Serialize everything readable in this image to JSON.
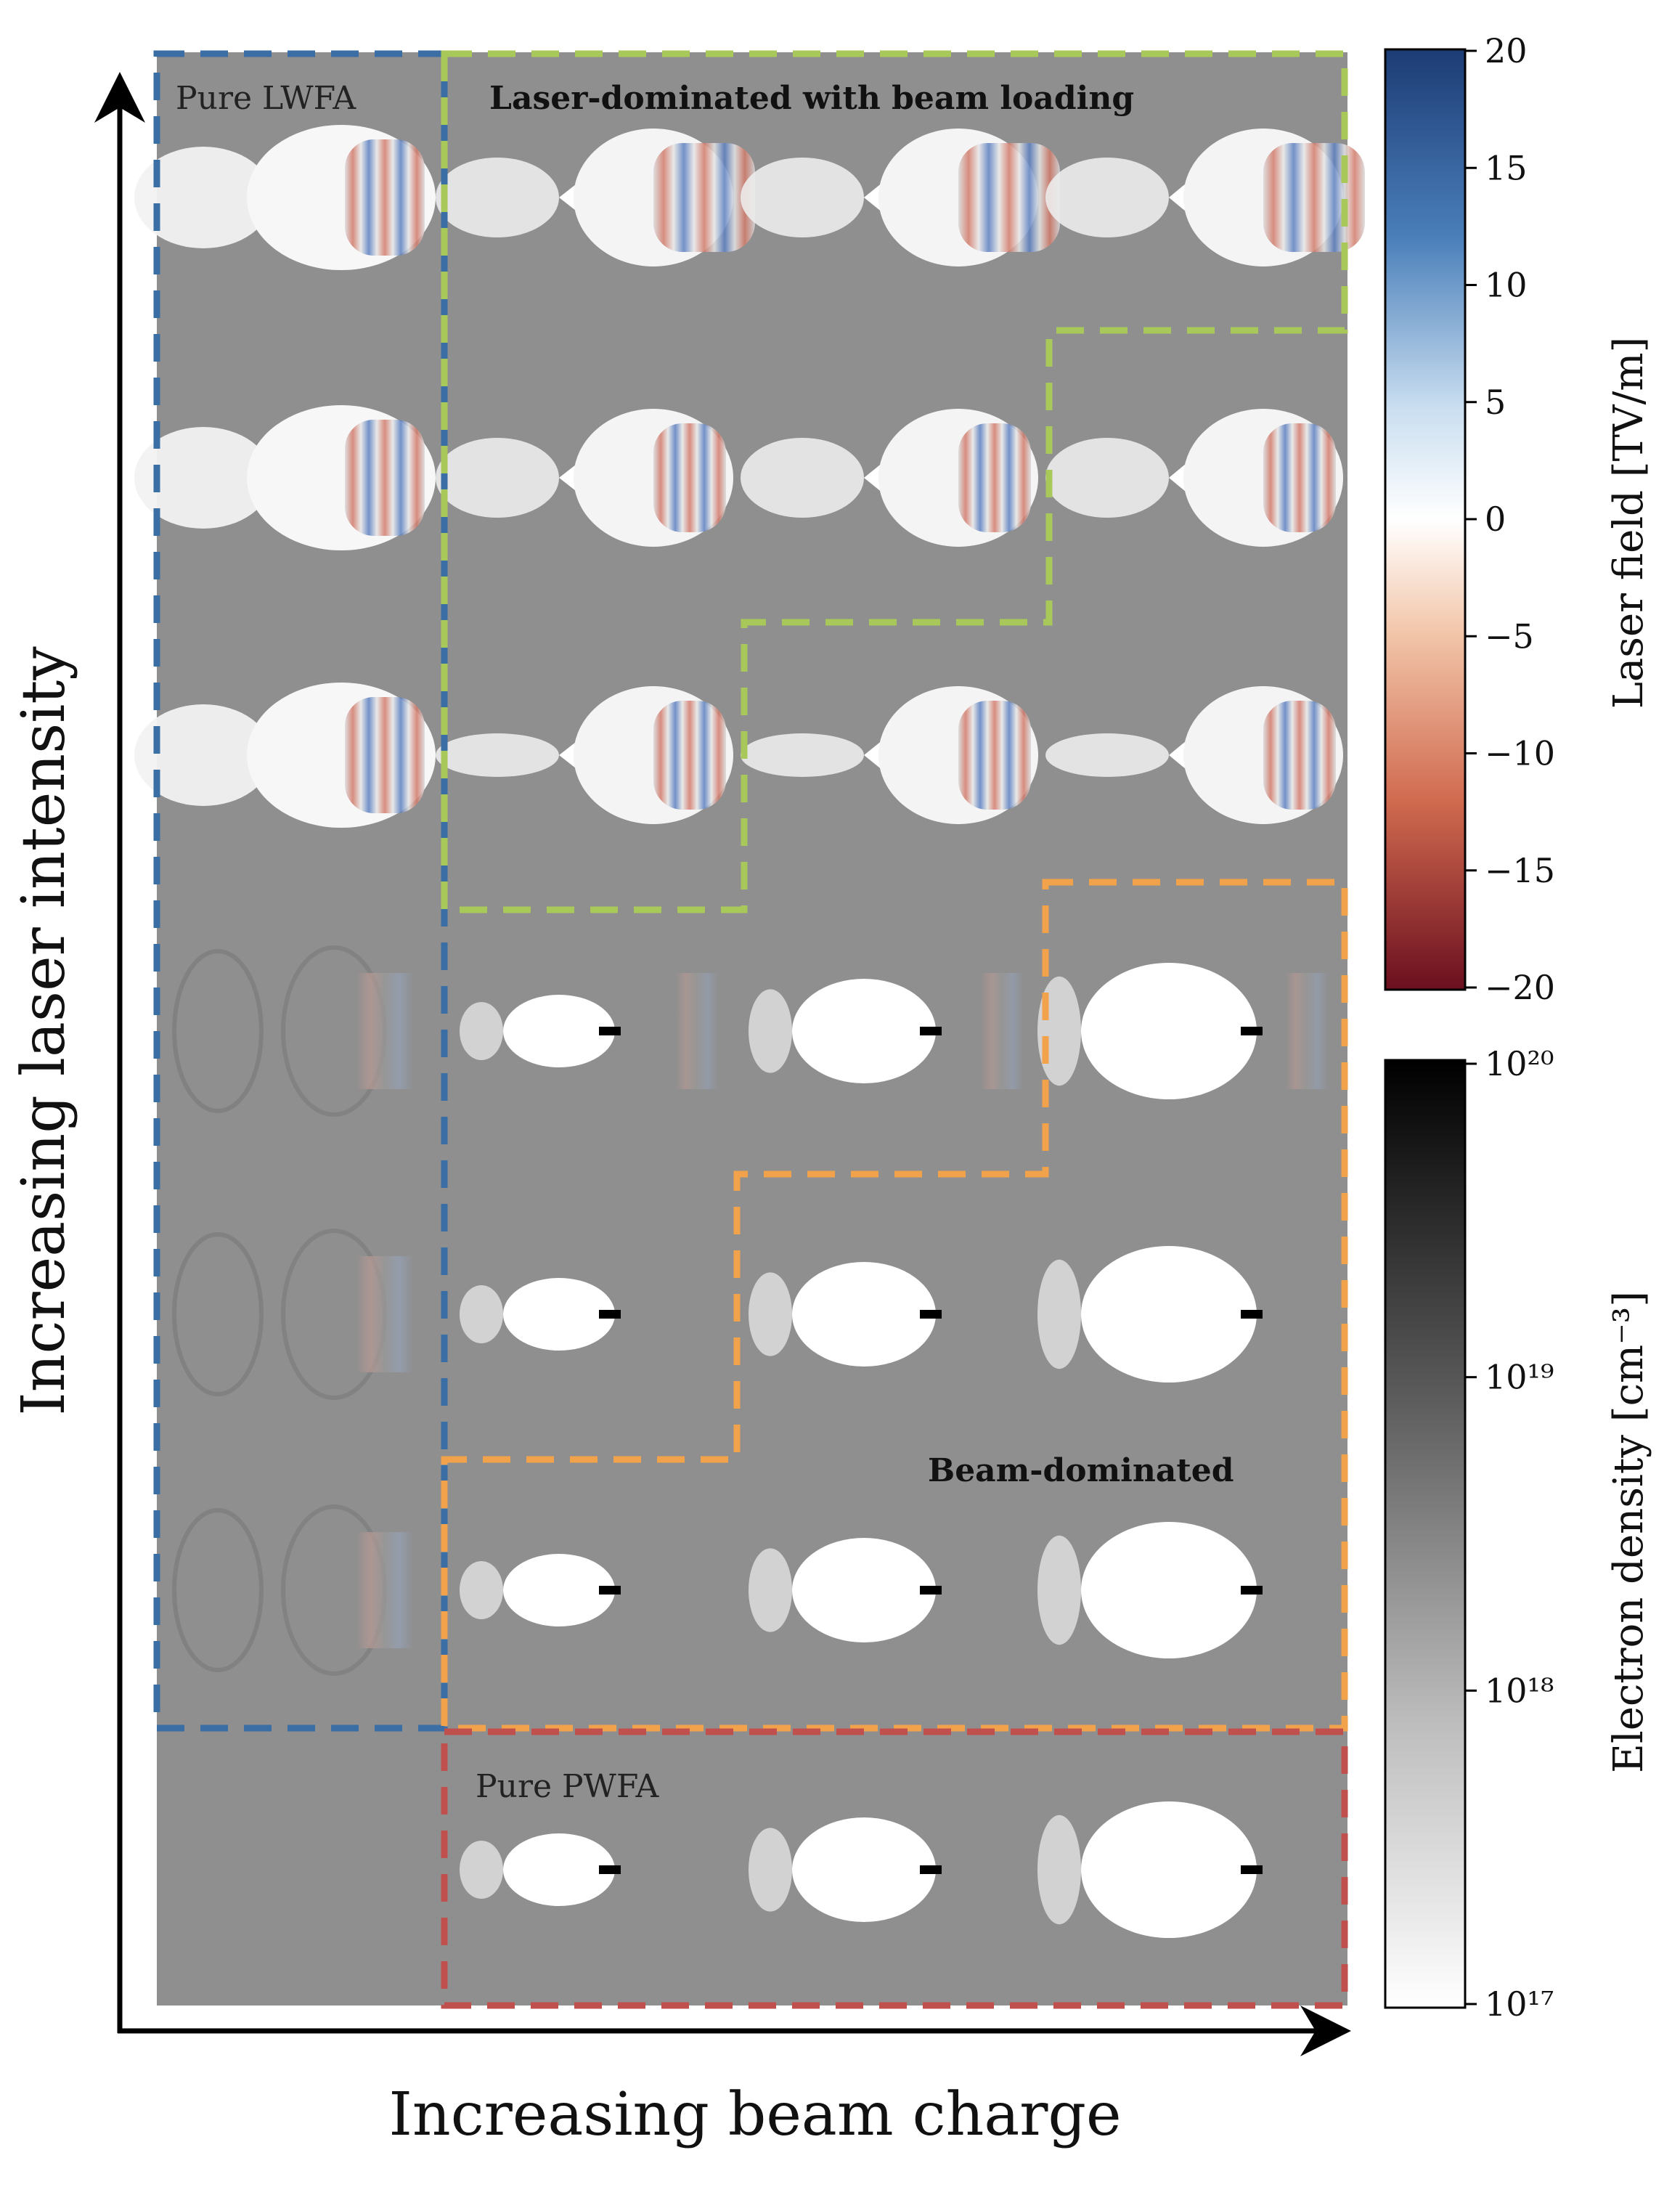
{
  "axes": {
    "x_label": "Increasing beam charge",
    "y_label": "Increasing laser intensity"
  },
  "regions": {
    "lwfa": {
      "label": "Pure LWFA",
      "color": "#3a6ea5"
    },
    "laser_dominated": {
      "label": "Laser-dominated with beam loading",
      "color": "#a8c85a"
    },
    "beam_dominated": {
      "label": "Beam-dominated",
      "color": "#f2a24a"
    },
    "pwfa": {
      "label": "Pure PWFA",
      "color": "#c0504d"
    }
  },
  "colorbars": {
    "laser_field": {
      "label": "Laser field [TV/m]",
      "ticks": [
        "20",
        "15",
        "10",
        "5",
        "0",
        "−5",
        "−10",
        "−15",
        "−20"
      ]
    },
    "electron_density": {
      "label": "Electron density [cm⁻³]",
      "ticks": [
        "10²⁰",
        "10¹⁹",
        "10¹⁸",
        "10¹⁷"
      ]
    }
  },
  "grid": {
    "rows": [
      [
        "lwfa",
        "laser",
        "laser",
        "laser"
      ],
      [
        "lwfa",
        "laser",
        "laser",
        "laser"
      ],
      [
        "lwfa",
        "laser",
        "laser",
        "laser"
      ],
      [
        "weak",
        "beam",
        "beam",
        "beam"
      ],
      [
        "weak",
        "beam",
        "beam",
        "beam"
      ],
      [
        "weak",
        "beam",
        "beam",
        "beam"
      ],
      [
        "none",
        "pwfa",
        "pwfa",
        "pwfa"
      ]
    ]
  }
}
